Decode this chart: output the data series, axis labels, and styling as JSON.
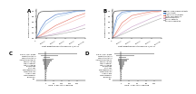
{
  "ceac_xlabel": "Cost-effectiveness threshold, €/QALY",
  "ceac_ylabel": "Probability cost-effective",
  "tornado_xlabel": "ICER, € per QALY gained",
  "legend_entries": [
    {
      "label": "Sero+ high Q fever patients",
      "color": "#333333"
    },
    {
      "label": "CVD patients",
      "color": "#4472c4"
    },
    {
      "label": "High risk CVD patients",
      "color": "#9dc3e6"
    },
    {
      "label": "Aortic valve patients",
      "color": "#e36c5c"
    },
    {
      "label": "Vascular patients",
      "color": "#f4b9b2"
    },
    {
      "label": "Cancer patients",
      "color": "#c9a0c9"
    },
    {
      "label": "General population",
      "color": "#a9a9a9"
    }
  ],
  "ceac_A_lines": [
    {
      "color": "#333333",
      "x": [
        0,
        2000,
        5000,
        10000,
        20000,
        40000,
        80000,
        100000
      ],
      "y": [
        0.03,
        0.7,
        0.9,
        0.96,
        0.98,
        0.99,
        1.0,
        1.0
      ]
    },
    {
      "color": "#4472c4",
      "x": [
        0,
        2000,
        5000,
        10000,
        20000,
        40000,
        80000,
        100000
      ],
      "y": [
        0.0,
        0.05,
        0.15,
        0.35,
        0.62,
        0.85,
        0.98,
        1.0
      ]
    },
    {
      "color": "#9dc3e6",
      "x": [
        0,
        2000,
        5000,
        10000,
        20000,
        40000,
        80000,
        100000
      ],
      "y": [
        0.0,
        0.03,
        0.1,
        0.25,
        0.5,
        0.75,
        0.96,
        1.0
      ]
    },
    {
      "color": "#e36c5c",
      "x": [
        0,
        2000,
        5000,
        10000,
        20000,
        40000,
        80000,
        100000
      ],
      "y": [
        0.0,
        0.01,
        0.04,
        0.1,
        0.22,
        0.45,
        0.78,
        0.9
      ]
    },
    {
      "color": "#f4b9b2",
      "x": [
        0,
        2000,
        5000,
        10000,
        20000,
        40000,
        80000,
        100000
      ],
      "y": [
        0.0,
        0.01,
        0.03,
        0.07,
        0.16,
        0.35,
        0.65,
        0.8
      ]
    },
    {
      "color": "#c9a0c9",
      "x": [
        0,
        2000,
        5000,
        10000,
        20000,
        40000,
        80000,
        100000
      ],
      "y": [
        0.0,
        0.0,
        0.01,
        0.03,
        0.07,
        0.15,
        0.35,
        0.48
      ]
    },
    {
      "color": "#a9a9a9",
      "x": [
        0,
        2000,
        5000,
        10000,
        20000,
        40000,
        80000,
        100000
      ],
      "y": [
        0.0,
        0.0,
        0.01,
        0.02,
        0.05,
        0.1,
        0.25,
        0.35
      ]
    }
  ],
  "ceac_B_lines": [
    {
      "color": "#333333",
      "x": [
        0,
        2000,
        5000,
        10000,
        20000,
        40000,
        80000,
        100000
      ],
      "y": [
        0.03,
        0.88,
        0.98,
        0.99,
        1.0,
        1.0,
        1.0,
        1.0
      ]
    },
    {
      "color": "#4472c4",
      "x": [
        0,
        2000,
        5000,
        10000,
        20000,
        40000,
        80000,
        100000
      ],
      "y": [
        0.0,
        0.18,
        0.48,
        0.78,
        0.95,
        0.99,
        1.0,
        1.0
      ]
    },
    {
      "color": "#9dc3e6",
      "x": [
        0,
        2000,
        5000,
        10000,
        20000,
        40000,
        80000,
        100000
      ],
      "y": [
        0.0,
        0.12,
        0.35,
        0.65,
        0.88,
        0.97,
        1.0,
        1.0
      ]
    },
    {
      "color": "#e36c5c",
      "x": [
        0,
        2000,
        5000,
        10000,
        20000,
        40000,
        80000,
        100000
      ],
      "y": [
        0.0,
        0.03,
        0.1,
        0.25,
        0.55,
        0.82,
        0.97,
        0.99
      ]
    },
    {
      "color": "#f4b9b2",
      "x": [
        0,
        2000,
        5000,
        10000,
        20000,
        40000,
        80000,
        100000
      ],
      "y": [
        0.0,
        0.02,
        0.07,
        0.18,
        0.42,
        0.7,
        0.92,
        0.97
      ]
    },
    {
      "color": "#c9a0c9",
      "x": [
        0,
        2000,
        5000,
        10000,
        20000,
        40000,
        80000,
        100000
      ],
      "y": [
        0.0,
        0.0,
        0.02,
        0.06,
        0.18,
        0.4,
        0.72,
        0.85
      ]
    },
    {
      "color": "#a9a9a9",
      "x": [
        0,
        2000,
        5000,
        10000,
        20000,
        40000,
        80000,
        100000
      ],
      "y": [
        0.0,
        0.0,
        0.01,
        0.04,
        0.12,
        0.28,
        0.58,
        0.72
      ]
    }
  ],
  "tornado_C_bars": [
    {
      "label": "Prob of chronic Q fever",
      "low": -50000,
      "high": 200000
    },
    {
      "label": "Sensitivity of testing",
      "low": -30000,
      "high": 80000
    },
    {
      "label": "Specificity of testing",
      "low": -15000,
      "high": 30000
    },
    {
      "label": "Treatment effectiveness",
      "low": -20000,
      "high": 50000
    },
    {
      "label": "Mortality risk CQF",
      "low": -18000,
      "high": 40000
    },
    {
      "label": "Cost of treatment",
      "low": -12000,
      "high": 25000
    },
    {
      "label": "Cost of screening",
      "low": -10000,
      "high": 20000
    },
    {
      "label": "Discount rate",
      "low": -8000,
      "high": 15000
    },
    {
      "label": "Utility CQF",
      "low": -6000,
      "high": 12000
    },
    {
      "label": "Hospitalization rate",
      "low": -5000,
      "high": 10000
    },
    {
      "label": "Complication rate",
      "low": -4000,
      "high": 8000
    },
    {
      "label": "Incidence area",
      "low": -3000,
      "high": 6000
    },
    {
      "label": "CVRF prevalence",
      "low": -2500,
      "high": 5000
    },
    {
      "label": "Time horizon",
      "low": -2000,
      "high": 4000
    },
    {
      "label": "Age",
      "low": -1500,
      "high": 3000
    }
  ],
  "tornado_D_bars": [
    {
      "label": "Prob of chronic Q fever",
      "low": -20000,
      "high": 100000
    },
    {
      "label": "Sensitivity of testing",
      "low": -12000,
      "high": 40000
    },
    {
      "label": "Specificity of testing",
      "low": -6000,
      "high": 15000
    },
    {
      "label": "Treatment effectiveness",
      "low": -8000,
      "high": 25000
    },
    {
      "label": "Mortality risk CQF",
      "low": -7000,
      "high": 20000
    },
    {
      "label": "Cost of treatment",
      "low": -5000,
      "high": 12000
    },
    {
      "label": "Cost of screening",
      "low": -4000,
      "high": 10000
    },
    {
      "label": "Discount rate",
      "low": -3000,
      "high": 7000
    },
    {
      "label": "Utility CQF",
      "low": -2500,
      "high": 6000
    },
    {
      "label": "Hospitalization rate",
      "low": -2000,
      "high": 5000
    },
    {
      "label": "Complication rate",
      "low": -1500,
      "high": 4000
    },
    {
      "label": "Incidence area",
      "low": -1200,
      "high": 3000
    },
    {
      "label": "CVRF prevalence",
      "low": -1000,
      "high": 2500
    },
    {
      "label": "Time horizon",
      "low": -800,
      "high": 2000
    },
    {
      "label": "Age",
      "low": -600,
      "high": 1500
    }
  ],
  "tornado_C_xlim": [
    -60000,
    250000
  ],
  "tornado_D_xlim": [
    -25000,
    120000
  ],
  "ceac_xticks": [
    0,
    20000,
    40000,
    60000,
    80000,
    100000
  ],
  "ceac_xticklabels": [
    "0",
    "20,000",
    "40,000",
    "60,000",
    "80,000",
    "100,000"
  ],
  "ceac_yticks": [
    0.0,
    0.2,
    0.4,
    0.6,
    0.8,
    1.0
  ],
  "bar_color_low": "#888888",
  "bar_color_high": "#555555",
  "bar_color": "#888888",
  "bg_color": "#ffffff"
}
